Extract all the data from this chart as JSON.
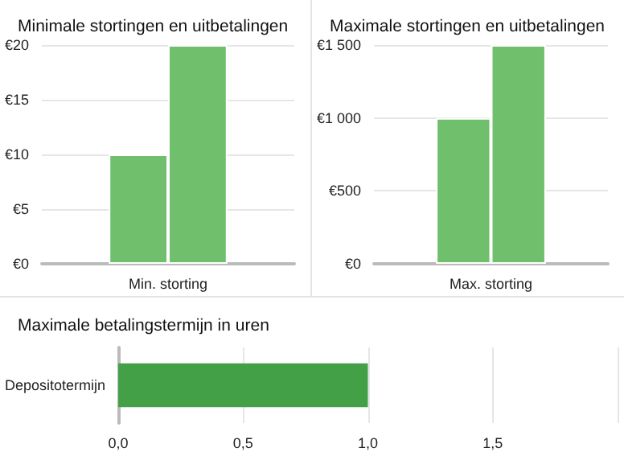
{
  "chart_data": [
    {
      "type": "bar",
      "title": "Minimale stortingen en uitbetalingen",
      "categories": [
        "Min. storting"
      ],
      "series": [
        {
          "color": "#6fbf6c",
          "values": [
            10
          ]
        },
        {
          "color": "#6fbf6c",
          "values": [
            20
          ]
        }
      ],
      "ylim": [
        0,
        20
      ],
      "yticks": [
        {
          "value": 0,
          "label": "€0"
        },
        {
          "value": 5,
          "label": "€5"
        },
        {
          "value": 10,
          "label": "€10"
        },
        {
          "value": 15,
          "label": "€15"
        },
        {
          "value": 20,
          "label": "€20"
        }
      ],
      "grid": "y"
    },
    {
      "type": "bar",
      "title": "Maximale stortingen en uitbetalingen",
      "categories": [
        "Max. storting"
      ],
      "series": [
        {
          "color": "#6fbf6c",
          "values": [
            1000
          ]
        },
        {
          "color": "#6fbf6c",
          "values": [
            1500
          ]
        }
      ],
      "ylim": [
        0,
        1500
      ],
      "yticks": [
        {
          "value": 0,
          "label": "€0"
        },
        {
          "value": 500,
          "label": "€500"
        },
        {
          "value": 1000,
          "label": "€1 000"
        },
        {
          "value": 1500,
          "label": "€1 500"
        }
      ],
      "grid": "y"
    },
    {
      "type": "bar",
      "orientation": "horizontal",
      "title": "Maximale betalingstermijn in uren",
      "categories": [
        "Depositotermijn"
      ],
      "series": [
        {
          "color": "#43a047",
          "values": [
            1
          ]
        }
      ],
      "xlim": [
        0,
        2
      ],
      "xticks": [
        {
          "value": 0,
          "label": "0,0"
        },
        {
          "value": 0.5,
          "label": "0,5"
        },
        {
          "value": 1,
          "label": "1,0"
        },
        {
          "value": 1.5,
          "label": "1,5"
        },
        {
          "value": 2,
          "label": null
        }
      ],
      "grid": "x"
    }
  ]
}
